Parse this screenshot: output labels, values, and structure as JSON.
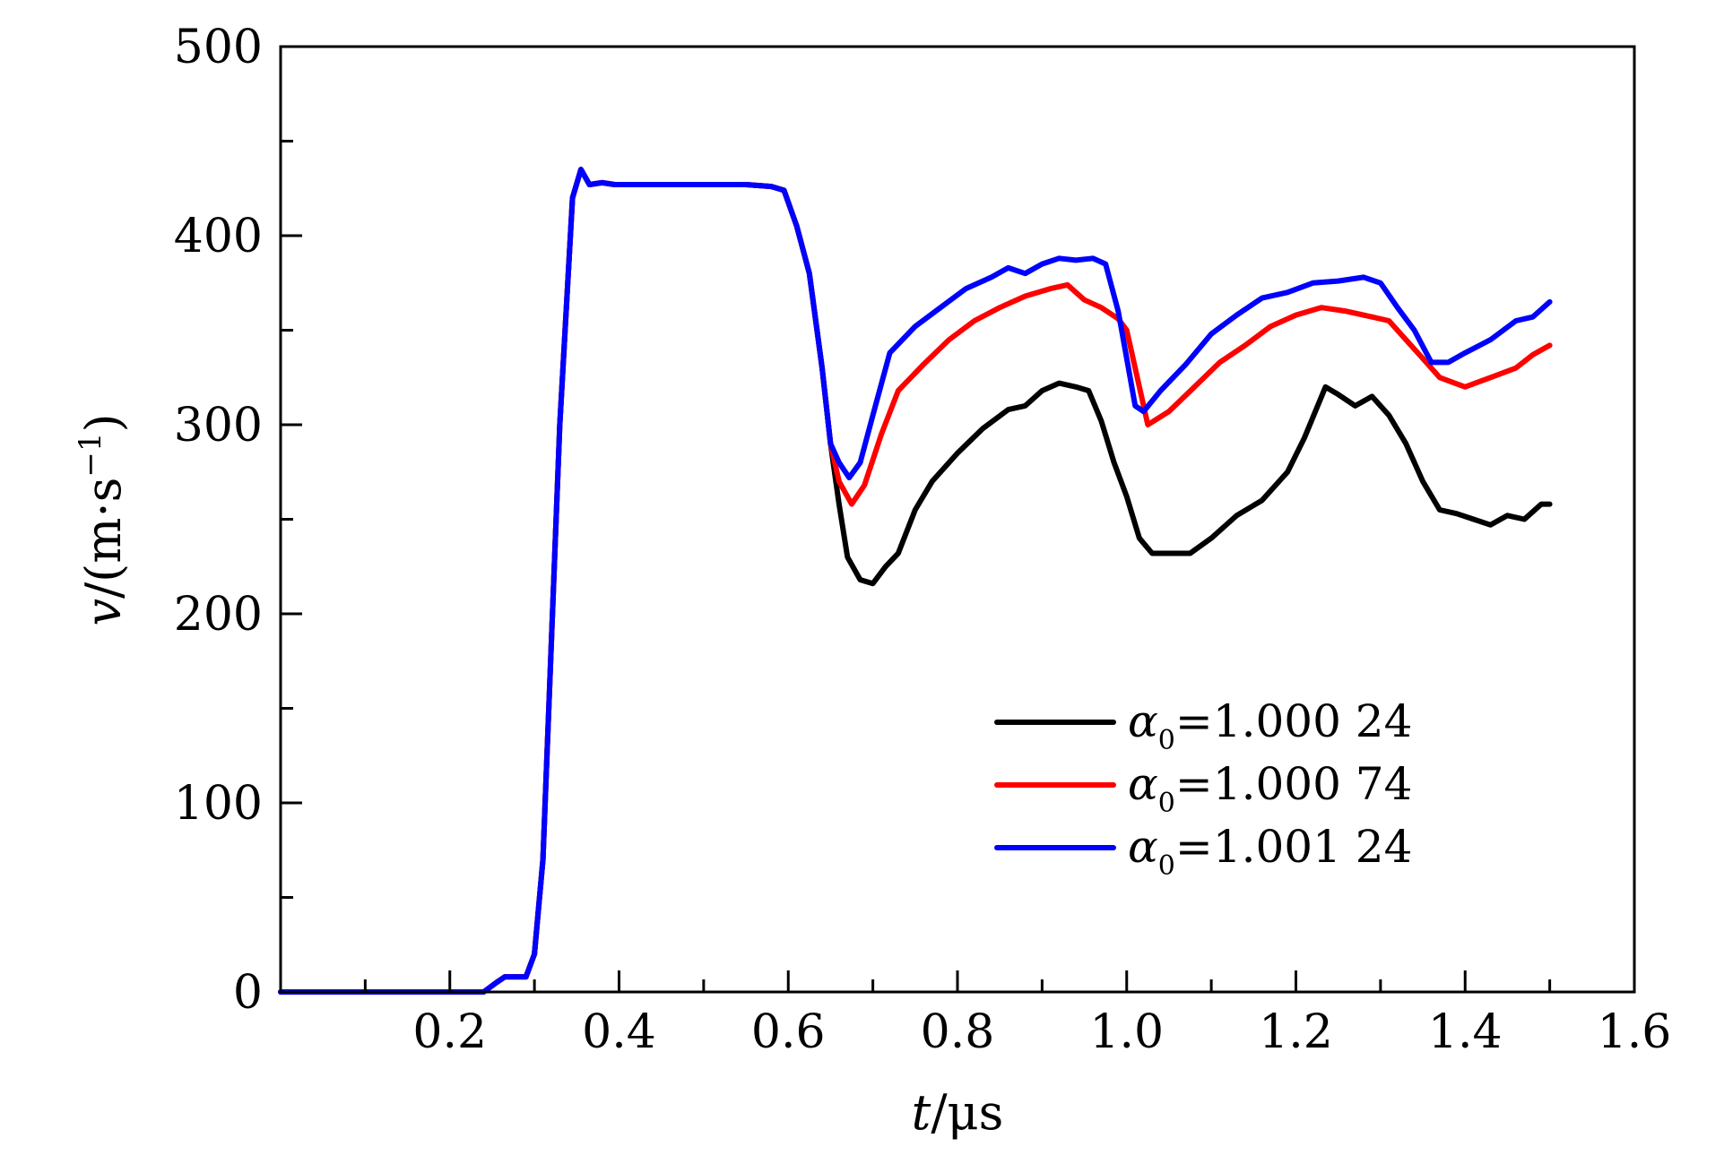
{
  "chart_data": {
    "type": "line",
    "xlabel_var": "t",
    "xlabel_unit": "/μs",
    "ylabel_var": "v",
    "ylabel_unit": "/(m·s",
    "ylabel_exp": "−1",
    "ylabel_close": ")",
    "xlim": [
      0,
      1.6
    ],
    "ylim": [
      0,
      500
    ],
    "xticks": [
      0.2,
      0.4,
      0.6,
      0.8,
      1.0,
      1.2,
      1.4,
      1.6
    ],
    "xtick_labels": [
      "0.2",
      "0.4",
      "0.6",
      "0.8",
      "1.0",
      "1.2",
      "1.4",
      "1.6"
    ],
    "yticks": [
      0,
      100,
      200,
      300,
      400,
      500
    ],
    "ytick_labels": [
      "0",
      "100",
      "200",
      "300",
      "400",
      "500"
    ],
    "legend_position": "right-middle",
    "series": [
      {
        "legend_symbol": "α",
        "legend_sub": "0",
        "legend_value": "=1.000 24",
        "color": "#000000",
        "x": [
          0,
          0.24,
          0.255,
          0.265,
          0.29,
          0.3,
          0.31,
          0.33,
          0.345,
          0.355,
          0.365,
          0.38,
          0.395,
          0.45,
          0.5,
          0.55,
          0.58,
          0.595,
          0.61,
          0.625,
          0.64,
          0.65,
          0.66,
          0.67,
          0.685,
          0.7,
          0.715,
          0.73,
          0.75,
          0.77,
          0.8,
          0.83,
          0.86,
          0.88,
          0.9,
          0.92,
          0.94,
          0.955,
          0.97,
          0.985,
          1.0,
          1.015,
          1.03,
          1.05,
          1.075,
          1.1,
          1.13,
          1.16,
          1.19,
          1.21,
          1.235,
          1.25,
          1.27,
          1.29,
          1.31,
          1.33,
          1.35,
          1.37,
          1.39,
          1.41,
          1.43,
          1.45,
          1.47,
          1.49,
          1.5
        ],
        "y": [
          0,
          0,
          5,
          8,
          8,
          20,
          70,
          300,
          420,
          435,
          427,
          428,
          427,
          427,
          427,
          427,
          426,
          424,
          405,
          380,
          330,
          290,
          258,
          230,
          218,
          216,
          225,
          232,
          255,
          270,
          285,
          298,
          308,
          310,
          318,
          322,
          320,
          318,
          302,
          280,
          262,
          240,
          232,
          232,
          232,
          240,
          252,
          260,
          275,
          293,
          320,
          316,
          310,
          315,
          305,
          290,
          270,
          255,
          253,
          250,
          247,
          252,
          250,
          258,
          258
        ]
      },
      {
        "legend_symbol": "α",
        "legend_sub": "0",
        "legend_value": "=1.000 74",
        "color": "#ff0000",
        "x": [
          0,
          0.24,
          0.255,
          0.265,
          0.29,
          0.3,
          0.31,
          0.33,
          0.345,
          0.355,
          0.365,
          0.38,
          0.395,
          0.45,
          0.5,
          0.55,
          0.58,
          0.595,
          0.61,
          0.625,
          0.64,
          0.65,
          0.66,
          0.675,
          0.69,
          0.71,
          0.73,
          0.76,
          0.79,
          0.82,
          0.85,
          0.88,
          0.91,
          0.93,
          0.95,
          0.97,
          0.99,
          1.0,
          1.015,
          1.025,
          1.05,
          1.08,
          1.11,
          1.14,
          1.17,
          1.2,
          1.23,
          1.26,
          1.29,
          1.31,
          1.33,
          1.35,
          1.37,
          1.4,
          1.43,
          1.46,
          1.48,
          1.5
        ],
        "y": [
          0,
          0,
          5,
          8,
          8,
          20,
          70,
          300,
          420,
          435,
          427,
          428,
          427,
          427,
          427,
          427,
          426,
          424,
          405,
          380,
          330,
          290,
          270,
          258,
          268,
          295,
          318,
          332,
          345,
          355,
          362,
          368,
          372,
          374,
          366,
          362,
          356,
          350,
          320,
          300,
          307,
          320,
          333,
          342,
          352,
          358,
          362,
          360,
          357,
          355,
          345,
          335,
          325,
          320,
          325,
          330,
          337,
          342
        ]
      },
      {
        "legend_symbol": "α",
        "legend_sub": "0",
        "legend_value": "=1.001 24",
        "color": "#0000ff",
        "x": [
          0,
          0.24,
          0.255,
          0.265,
          0.29,
          0.3,
          0.31,
          0.33,
          0.345,
          0.355,
          0.365,
          0.38,
          0.395,
          0.45,
          0.5,
          0.55,
          0.58,
          0.595,
          0.61,
          0.625,
          0.64,
          0.65,
          0.66,
          0.672,
          0.685,
          0.7,
          0.72,
          0.75,
          0.78,
          0.81,
          0.84,
          0.86,
          0.88,
          0.9,
          0.92,
          0.94,
          0.96,
          0.975,
          0.99,
          1.0,
          1.01,
          1.02,
          1.04,
          1.07,
          1.1,
          1.13,
          1.16,
          1.19,
          1.22,
          1.25,
          1.28,
          1.3,
          1.32,
          1.34,
          1.36,
          1.38,
          1.4,
          1.43,
          1.46,
          1.48,
          1.5
        ],
        "y": [
          0,
          0,
          5,
          8,
          8,
          20,
          70,
          300,
          420,
          435,
          427,
          428,
          427,
          427,
          427,
          427,
          426,
          424,
          405,
          380,
          330,
          290,
          280,
          272,
          280,
          305,
          338,
          352,
          362,
          372,
          378,
          383,
          380,
          385,
          388,
          387,
          388,
          385,
          360,
          335,
          310,
          307,
          318,
          332,
          348,
          358,
          367,
          370,
          375,
          376,
          378,
          375,
          362,
          350,
          333,
          333,
          338,
          345,
          355,
          357,
          365
        ]
      }
    ]
  }
}
